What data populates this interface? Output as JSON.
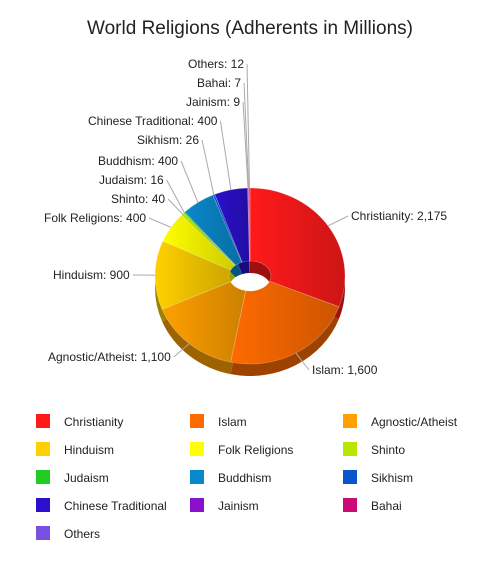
{
  "chart_data": {
    "type": "pie",
    "title": "World Religions (Adherents in Millions)",
    "categories": [
      "Christianity",
      "Islam",
      "Agnostic/Atheist",
      "Hinduism",
      "Folk Religions",
      "Shinto",
      "Judaism",
      "Buddhism",
      "Sikhism",
      "Chinese Traditional",
      "Jainism",
      "Bahai",
      "Others"
    ],
    "values": [
      2175,
      1600,
      1100,
      900,
      400,
      40,
      16,
      400,
      26,
      400,
      9,
      7,
      12
    ],
    "value_labels": [
      "2,175",
      "1,600",
      "1,100",
      "900",
      "400",
      "40",
      "16",
      "400",
      "26",
      "400",
      "9",
      "7",
      "12"
    ],
    "colors": [
      "#ff1a1a",
      "#ff6a00",
      "#ffa000",
      "#ffd000",
      "#ffff00",
      "#b8e600",
      "#22cc22",
      "#0a88cc",
      "#0a55cc",
      "#2a10cc",
      "#8a10cc",
      "#cc0a77",
      "#7a50e0"
    ],
    "donut": true,
    "legend_position": "bottom"
  }
}
